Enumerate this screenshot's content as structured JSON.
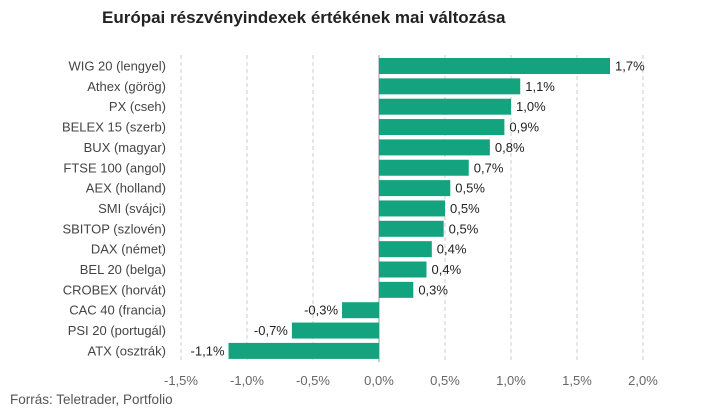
{
  "title": "Európai részvényindexek értékének mai változása",
  "source": "Forrás: Teletrader, Portfolio",
  "chart_data": {
    "type": "bar",
    "orientation": "horizontal",
    "title": "Európai részvényindexek értékének mai változása",
    "categories": [
      "WIG 20 (lengyel)",
      "Athex (görög)",
      "PX (cseh)",
      "BELEX 15 (szerb)",
      "BUX (magyar)",
      "FTSE 100 (angol)",
      "AEX (holland)",
      "SMI (svájci)",
      "SBITOP (szlovén)",
      "DAX (német)",
      "BEL 20 (belga)",
      "CROBEX (horvát)",
      "CAC 40 (francia)",
      "PSI 20 (portugál)",
      "ATX (osztrák)"
    ],
    "values": [
      1.75,
      1.07,
      1.0,
      0.95,
      0.84,
      0.68,
      0.54,
      0.5,
      0.49,
      0.4,
      0.36,
      0.26,
      -0.28,
      -0.66,
      -1.14
    ],
    "value_labels": [
      "1,7%",
      "1,1%",
      "1,0%",
      "0,9%",
      "0,8%",
      "0,7%",
      "0,5%",
      "0,5%",
      "0,5%",
      "0,4%",
      "0,4%",
      "0,3%",
      "-0,3%",
      "-0,7%",
      "-1,1%"
    ],
    "xlim": [
      -1.5,
      2.0
    ],
    "x_ticks": [
      -1.5,
      -1.0,
      -0.5,
      0.0,
      0.5,
      1.0,
      1.5,
      2.0
    ],
    "x_tick_labels": [
      "-1,5%",
      "-1,0%",
      "-0,5%",
      "0,0%",
      "0,5%",
      "1,0%",
      "1,5%",
      "2,0%"
    ],
    "grid": "vertical dashed",
    "bar_color": "#14a37f",
    "xlabel": "",
    "ylabel": ""
  }
}
